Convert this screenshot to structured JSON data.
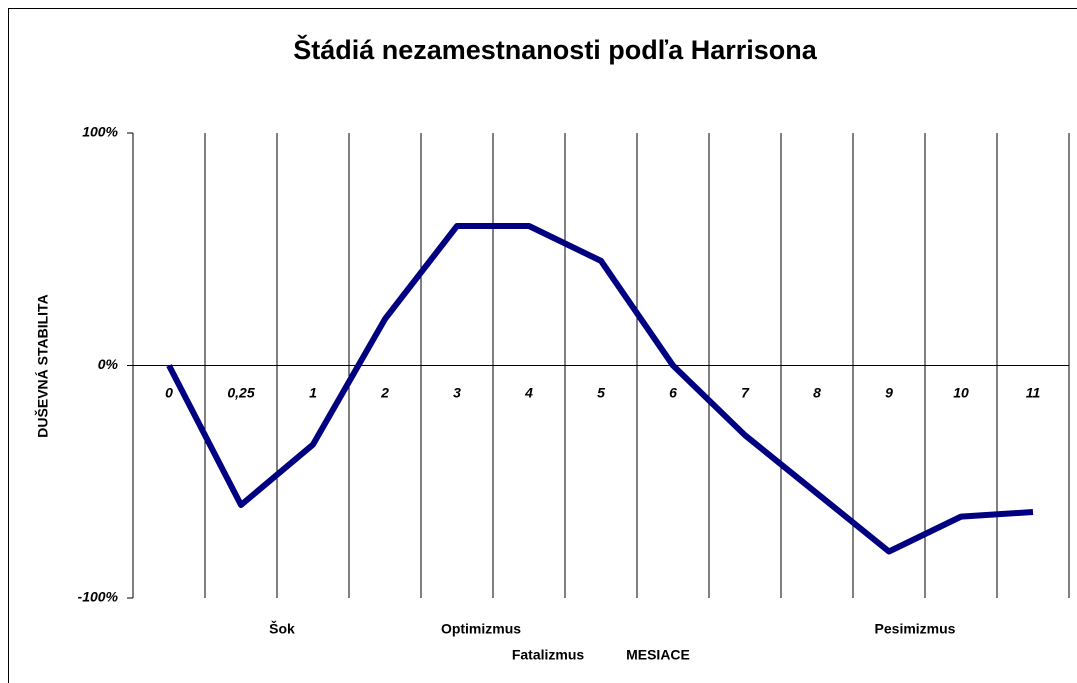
{
  "chart_data": {
    "type": "line",
    "title": "Štádiá nezamestnanosti podľa Harrisona",
    "y_label": "DUŠEVNÁ STABILITA",
    "x_label": "MESIACE",
    "annotations": [
      "Šok",
      "Optimizmus",
      "Fatalizmus",
      "Pesimizmus"
    ],
    "categories": [
      "0",
      "0,25",
      "1",
      "2",
      "3",
      "4",
      "5",
      "6",
      "7",
      "8",
      "9",
      "10",
      "11"
    ],
    "series": [
      {
        "color": "#000080",
        "values": [
          0,
          -60,
          -34,
          20,
          60,
          60,
          45,
          0,
          -30,
          -55,
          -80,
          -65,
          -63
        ]
      }
    ],
    "ylim": [
      -100,
      100
    ],
    "yticks": [
      {
        "value": 100,
        "label": "100%"
      },
      {
        "value": 0,
        "label": "0%"
      },
      {
        "value": -100,
        "label": "-100%"
      }
    ]
  }
}
